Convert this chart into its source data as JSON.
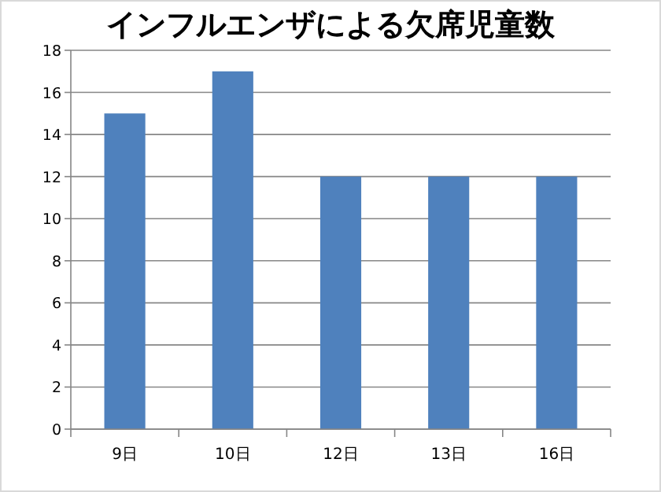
{
  "chart_data": {
    "type": "bar",
    "title": "インフルエンザによる欠席児童数",
    "categories": [
      "9日",
      "10日",
      "12日",
      "13日",
      "16日"
    ],
    "values": [
      15,
      17,
      12,
      12,
      12
    ],
    "color": "#4f81bd",
    "ylim": [
      0,
      18
    ],
    "yticks": [
      0,
      2,
      4,
      6,
      8,
      10,
      12,
      14,
      16,
      18
    ],
    "grid": "y"
  }
}
